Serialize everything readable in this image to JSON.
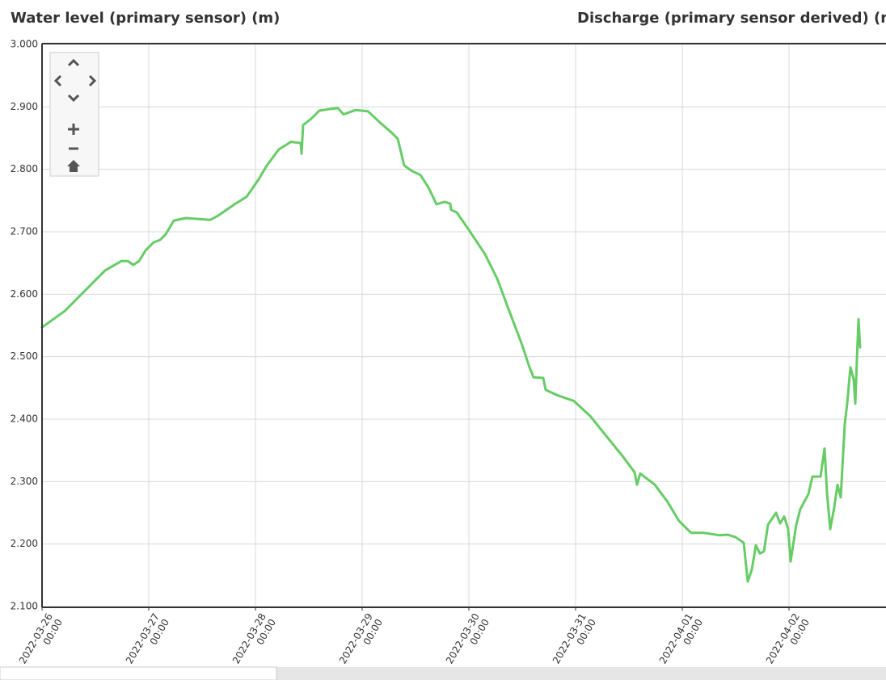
{
  "chart_data": {
    "type": "line",
    "title": "Water level (primary sensor) (m)",
    "subtitle": "Discharge (primary sensor derived) (m",
    "xlim": [
      "2022-03-26 00:00",
      "2022-04-02 21:49"
    ],
    "xticks": [
      {
        "value": "2022-03-26 00:00",
        "label": "2022-03-26\n00:00"
      },
      {
        "value": "2022-03-27 00:00",
        "label": "2022-03-27\n00:00"
      },
      {
        "value": "2022-03-28 00:00",
        "label": "2022-03-28\n00:00"
      },
      {
        "value": "2022-03-29 00:00",
        "label": "2022-03-29\n00:00"
      },
      {
        "value": "2022-03-30 00:00",
        "label": "2022-03-30\n00:00"
      },
      {
        "value": "2022-03-31 00:00",
        "label": "2022-03-31\n00:00"
      },
      {
        "value": "2022-04-01 00:00",
        "label": "2022-04-01\n00:00"
      },
      {
        "value": "2022-04-02 00:00",
        "label": "2022-04-02\n00:00"
      }
    ],
    "ylim": [
      2.1,
      3.0
    ],
    "yticks": [
      {
        "value": 2.1,
        "label": "2.100"
      },
      {
        "value": 2.2,
        "label": "2.200"
      },
      {
        "value": 2.3,
        "label": "2.300"
      },
      {
        "value": 2.4,
        "label": "2.400"
      },
      {
        "value": 2.5,
        "label": "2.500"
      },
      {
        "value": 2.6,
        "label": "2.600"
      },
      {
        "value": 2.7,
        "label": "2.700"
      },
      {
        "value": 2.8,
        "label": "2.800"
      },
      {
        "value": 2.9,
        "label": "2.900"
      },
      {
        "value": 3.0,
        "label": "3.000"
      }
    ],
    "grid": true,
    "x": [
      "2022-03-26 00:00",
      "2022-03-26 05:05",
      "2022-03-26 10:33",
      "2022-03-26 14:11",
      "2022-03-26 17:49",
      "2022-03-26 19:16",
      "2022-03-26 20:33",
      "2022-03-26 21:49",
      "2022-03-26 23:16",
      "2022-03-27 01:05",
      "2022-03-27 02:33",
      "2022-03-27 03:49",
      "2022-03-27 05:38",
      "2022-03-27 08:22",
      "2022-03-27 13:49",
      "2022-03-27 15:38",
      "2022-03-27 19:16",
      "2022-03-27 22:00",
      "2022-03-28 00:44",
      "2022-03-28 02:33",
      "2022-03-28 05:16",
      "2022-03-28 08:00",
      "2022-03-28 10:11",
      "2022-03-28 10:22",
      "2022-03-28 10:44",
      "2022-03-28 12:33",
      "2022-03-28 14:22",
      "2022-03-28 17:05",
      "2022-03-28 18:33",
      "2022-03-28 19:49",
      "2022-03-28 22:33",
      "2022-03-29 01:16",
      "2022-03-29 04:00",
      "2022-03-29 06:44",
      "2022-03-29 08:00",
      "2022-03-29 09:27",
      "2022-03-29 11:16",
      "2022-03-29 13:05",
      "2022-03-29 14:55",
      "2022-03-29 16:44",
      "2022-03-29 18:33",
      "2022-03-29 19:49",
      "2022-03-29 20:00",
      "2022-03-29 21:16",
      "2022-03-30 00:00",
      "2022-03-30 03:38",
      "2022-03-30 06:22",
      "2022-03-30 09:05",
      "2022-03-30 11:49",
      "2022-03-30 13:38",
      "2022-03-30 14:33",
      "2022-03-30 16:44",
      "2022-03-30 17:16",
      "2022-03-30 20:00",
      "2022-03-30 23:38",
      "2022-03-31 03:16",
      "2022-03-31 06:55",
      "2022-03-31 10:33",
      "2022-03-31 13:16",
      "2022-03-31 13:49",
      "2022-03-31 14:33",
      "2022-03-31 17:49",
      "2022-03-31 20:33",
      "2022-03-31 23:16",
      "2022-04-01 01:05",
      "2022-04-01 02:00",
      "2022-04-01 04:44",
      "2022-04-01 08:22",
      "2022-04-01 10:11",
      "2022-04-01 12:00",
      "2022-04-01 13:49",
      "2022-04-01 14:44",
      "2022-04-01 15:38",
      "2022-04-01 16:33",
      "2022-04-01 17:27",
      "2022-04-01 18:22",
      "2022-04-01 19:16",
      "2022-04-01 21:05",
      "2022-04-01 22:00",
      "2022-04-01 22:55",
      "2022-04-01 23:49",
      "2022-04-02 00:22",
      "2022-04-02 01:38",
      "2022-04-02 02:33",
      "2022-04-02 04:22",
      "2022-04-02 05:16",
      "2022-04-02 07:05",
      "2022-04-02 08:00",
      "2022-04-02 08:33",
      "2022-04-02 09:16",
      "2022-04-02 10:11",
      "2022-04-02 10:55",
      "2022-04-02 11:38",
      "2022-04-02 12:33",
      "2022-04-02 13:05",
      "2022-04-02 13:49",
      "2022-04-02 14:33",
      "2022-04-02 14:55",
      "2022-04-02 15:16",
      "2022-04-02 15:38",
      "2022-04-02 16:00"
    ],
    "series": [
      {
        "name": "Water level",
        "color": "#66cc66",
        "values": [
          2.547,
          2.573,
          2.612,
          2.638,
          2.653,
          2.653,
          2.647,
          2.653,
          2.67,
          2.683,
          2.687,
          2.696,
          2.718,
          2.722,
          2.719,
          2.726,
          2.744,
          2.756,
          2.784,
          2.806,
          2.832,
          2.844,
          2.842,
          2.825,
          2.871,
          2.881,
          2.894,
          2.897,
          2.898,
          2.888,
          2.895,
          2.893,
          2.875,
          2.858,
          2.849,
          2.806,
          2.797,
          2.791,
          2.771,
          2.744,
          2.748,
          2.745,
          2.735,
          2.731,
          2.703,
          2.664,
          2.625,
          2.573,
          2.522,
          2.483,
          2.467,
          2.466,
          2.447,
          2.438,
          2.429,
          2.405,
          2.373,
          2.341,
          2.315,
          2.295,
          2.313,
          2.295,
          2.269,
          2.237,
          2.224,
          2.218,
          2.218,
          2.214,
          2.215,
          2.211,
          2.202,
          2.14,
          2.159,
          2.198,
          2.185,
          2.188,
          2.231,
          2.25,
          2.233,
          2.244,
          2.224,
          2.172,
          2.231,
          2.256,
          2.28,
          2.308,
          2.308,
          2.353,
          2.282,
          2.224,
          2.259,
          2.295,
          2.275,
          2.392,
          2.425,
          2.483,
          2.464,
          2.425,
          2.495,
          2.56,
          2.515
        ]
      }
    ]
  }
}
